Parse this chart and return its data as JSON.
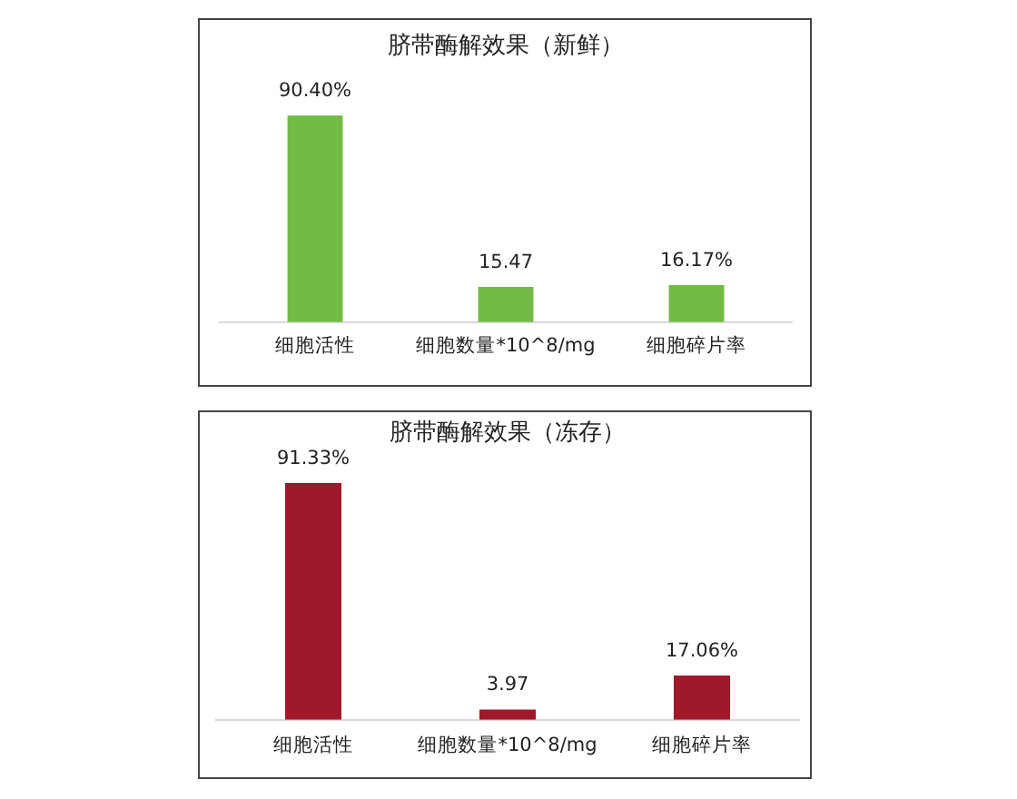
{
  "chart_data": [
    {
      "type": "bar",
      "title": "脐带酶解效果（新鲜）",
      "categories": [
        "细胞活性",
        "细胞数量*10^8/mg",
        "细胞碎片率"
      ],
      "values": [
        90.4,
        15.47,
        16.17
      ],
      "value_labels": [
        "90.40%",
        "15.47",
        "16.17%"
      ],
      "color": "#72bb44",
      "tick_labels": "x"
    },
    {
      "type": "bar",
      "title": "脐带酶解效果（冻存）",
      "categories": [
        "细胞活性",
        "细胞数量*10^8/mg",
        "细胞碎片率"
      ],
      "values": [
        91.33,
        3.97,
        17.06
      ],
      "value_labels": [
        "91.33%",
        "3.97",
        "17.06%"
      ],
      "color": "#a0192a",
      "tick_labels": "x"
    }
  ]
}
